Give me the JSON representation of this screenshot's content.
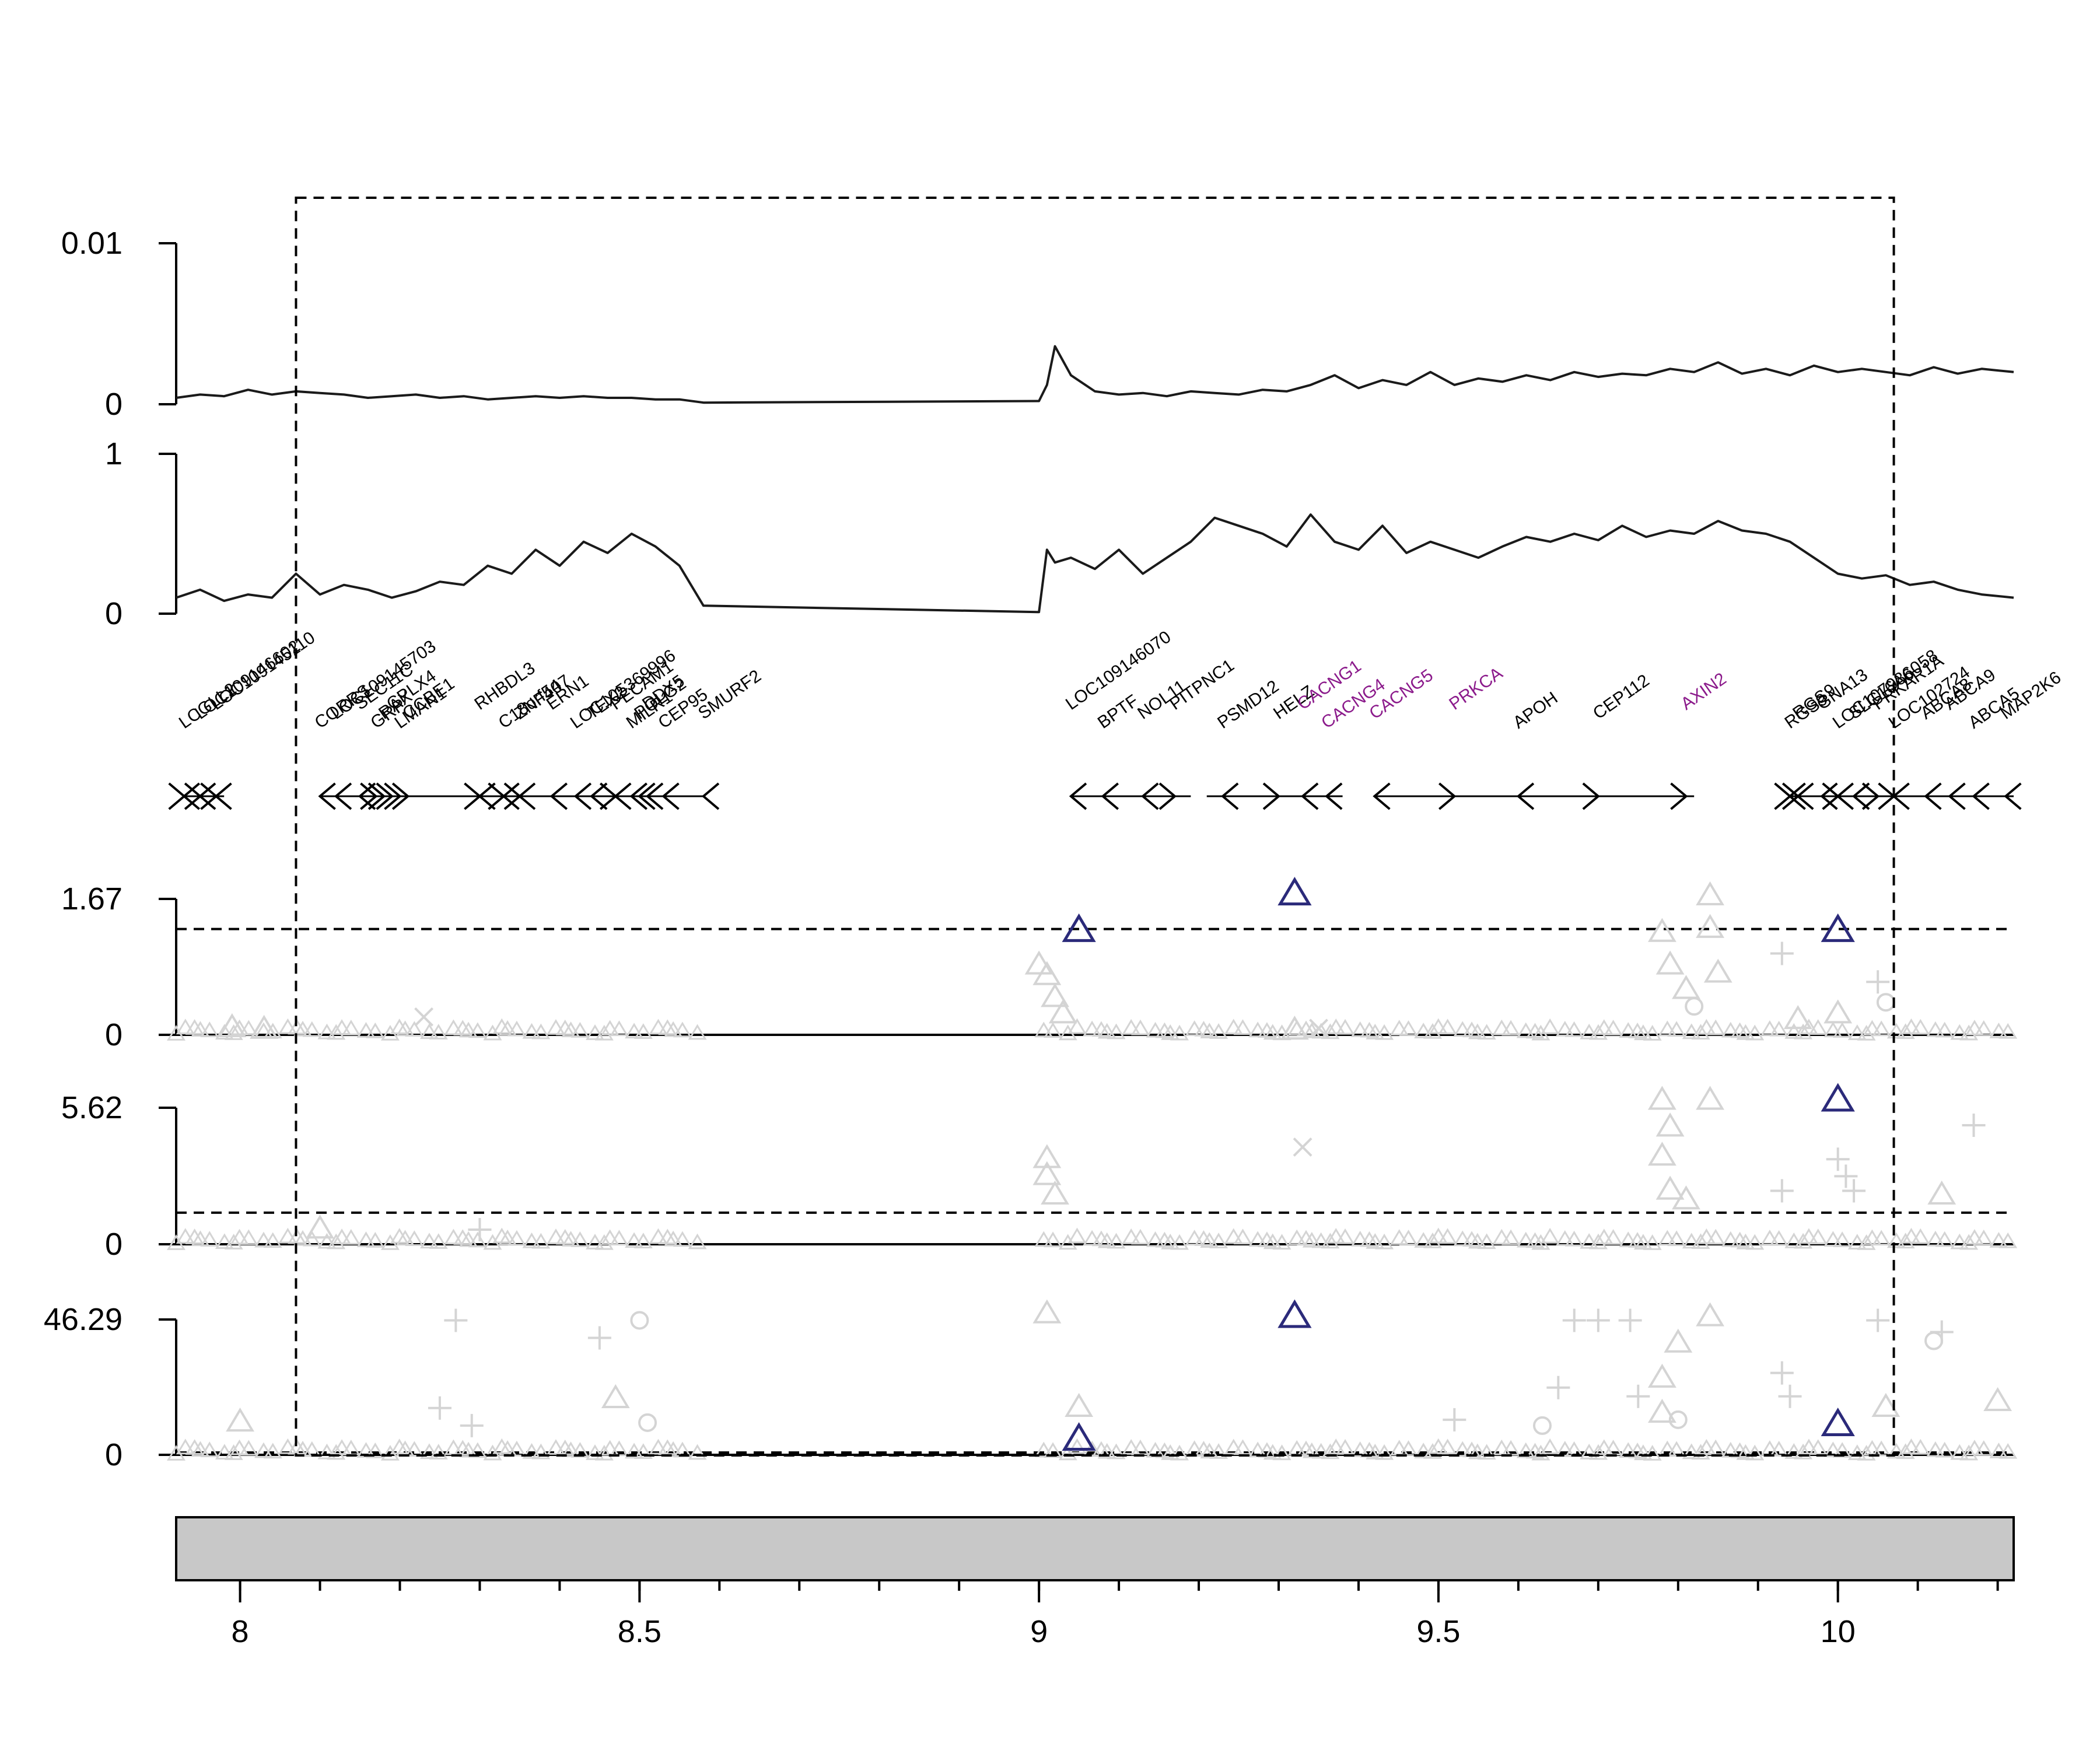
{
  "chart_data": {
    "type": "line",
    "title": "",
    "x_axis": {
      "range": [
        7.92,
        10.22
      ],
      "ticks": [
        8,
        8.5,
        9,
        9.5,
        10
      ],
      "tick_labels": [
        "8",
        "8.5",
        "9",
        "9.5",
        "10"
      ],
      "minor_step": 0.1,
      "label": ""
    },
    "highlight_region": [
      8.07,
      10.07
    ],
    "tracks": [
      {
        "kind": "line",
        "ylim": [
          0,
          0.01
        ],
        "tick_labels": [
          "0",
          "0.01"
        ],
        "x": [
          7.92,
          7.95,
          7.98,
          8.01,
          8.04,
          8.07,
          8.1,
          8.13,
          8.16,
          8.19,
          8.22,
          8.25,
          8.28,
          8.31,
          8.34,
          8.37,
          8.4,
          8.43,
          8.46,
          8.49,
          8.52,
          8.55,
          8.58,
          9.0,
          9.01,
          9.02,
          9.04,
          9.07,
          9.1,
          9.13,
          9.16,
          9.19,
          9.22,
          9.25,
          9.28,
          9.31,
          9.34,
          9.37,
          9.4,
          9.43,
          9.46,
          9.49,
          9.52,
          9.55,
          9.58,
          9.61,
          9.64,
          9.67,
          9.7,
          9.73,
          9.76,
          9.79,
          9.82,
          9.85,
          9.88,
          9.91,
          9.94,
          9.97,
          10.0,
          10.03,
          10.06,
          10.09,
          10.12,
          10.15,
          10.18,
          10.22
        ],
        "y": [
          0.0004,
          0.0006,
          0.0005,
          0.0009,
          0.0006,
          0.0008,
          0.0007,
          0.0006,
          0.0004,
          0.0005,
          0.0006,
          0.0004,
          0.0005,
          0.0003,
          0.0004,
          0.0005,
          0.0004,
          0.0005,
          0.0004,
          0.0004,
          0.0003,
          0.0003,
          0.0001,
          0.0002,
          0.0012,
          0.0036,
          0.0018,
          0.0008,
          0.0006,
          0.0007,
          0.0005,
          0.0008,
          0.0007,
          0.0006,
          0.0009,
          0.0008,
          0.0012,
          0.0018,
          0.001,
          0.0015,
          0.0012,
          0.002,
          0.0012,
          0.0016,
          0.0014,
          0.0018,
          0.0015,
          0.002,
          0.0017,
          0.0019,
          0.0018,
          0.0022,
          0.002,
          0.0026,
          0.0019,
          0.0022,
          0.0018,
          0.0024,
          0.002,
          0.0022,
          0.002,
          0.0018,
          0.0023,
          0.0019,
          0.0022,
          0.002
        ]
      },
      {
        "kind": "line",
        "ylim": [
          0,
          1
        ],
        "tick_labels": [
          "0",
          "1"
        ],
        "x": [
          7.92,
          7.95,
          7.98,
          8.01,
          8.04,
          8.07,
          8.1,
          8.13,
          8.16,
          8.19,
          8.22,
          8.25,
          8.28,
          8.31,
          8.34,
          8.37,
          8.4,
          8.43,
          8.46,
          8.49,
          8.52,
          8.55,
          8.58,
          9.0,
          9.01,
          9.02,
          9.04,
          9.07,
          9.1,
          9.13,
          9.16,
          9.19,
          9.22,
          9.25,
          9.28,
          9.31,
          9.34,
          9.37,
          9.4,
          9.43,
          9.46,
          9.49,
          9.52,
          9.55,
          9.58,
          9.61,
          9.64,
          9.67,
          9.7,
          9.73,
          9.76,
          9.79,
          9.82,
          9.85,
          9.88,
          9.91,
          9.94,
          9.97,
          10.0,
          10.03,
          10.06,
          10.09,
          10.12,
          10.15,
          10.18,
          10.22
        ],
        "y": [
          0.1,
          0.15,
          0.08,
          0.12,
          0.1,
          0.25,
          0.12,
          0.18,
          0.15,
          0.1,
          0.14,
          0.2,
          0.18,
          0.3,
          0.25,
          0.4,
          0.3,
          0.45,
          0.38,
          0.5,
          0.42,
          0.3,
          0.05,
          0.01,
          0.4,
          0.32,
          0.35,
          0.28,
          0.4,
          0.25,
          0.35,
          0.45,
          0.6,
          0.55,
          0.5,
          0.42,
          0.62,
          0.45,
          0.4,
          0.55,
          0.38,
          0.45,
          0.4,
          0.35,
          0.42,
          0.48,
          0.45,
          0.5,
          0.46,
          0.55,
          0.48,
          0.52,
          0.5,
          0.58,
          0.52,
          0.5,
          0.45,
          0.35,
          0.25,
          0.22,
          0.24,
          0.18,
          0.2,
          0.15,
          0.12,
          0.1
        ]
      },
      {
        "kind": "scatter",
        "ylim": [
          0,
          1.67
        ],
        "tick_labels": [
          "0",
          "1.67"
        ],
        "threshold": 1.3,
        "highlighted": [
          {
            "x": 9.05,
            "y": 1.27
          },
          {
            "x": 9.32,
            "y": 1.72
          },
          {
            "x": 10.0,
            "y": 1.27
          }
        ],
        "background": [
          {
            "x": 7.99,
            "y": 0.08,
            "m": "t"
          },
          {
            "x": 8.03,
            "y": 0.06,
            "m": "t"
          },
          {
            "x": 8.23,
            "y": 0.22,
            "m": "x"
          },
          {
            "x": 9.0,
            "y": 0.85,
            "m": "t"
          },
          {
            "x": 9.01,
            "y": 0.72,
            "m": "t"
          },
          {
            "x": 9.02,
            "y": 0.45,
            "m": "t"
          },
          {
            "x": 9.03,
            "y": 0.25,
            "m": "t"
          },
          {
            "x": 9.32,
            "y": 0.05,
            "m": "t"
          },
          {
            "x": 9.35,
            "y": 0.08,
            "m": "x"
          },
          {
            "x": 9.78,
            "y": 1.25,
            "m": "t"
          },
          {
            "x": 9.79,
            "y": 0.85,
            "m": "t"
          },
          {
            "x": 9.81,
            "y": 0.55,
            "m": "t"
          },
          {
            "x": 9.82,
            "y": 0.35,
            "m": "o"
          },
          {
            "x": 9.84,
            "y": 1.7,
            "m": "t"
          },
          {
            "x": 9.84,
            "y": 1.3,
            "m": "t"
          },
          {
            "x": 9.85,
            "y": 0.75,
            "m": "t"
          },
          {
            "x": 9.93,
            "y": 1.0,
            "m": "p"
          },
          {
            "x": 10.05,
            "y": 0.65,
            "m": "p"
          },
          {
            "x": 10.06,
            "y": 0.4,
            "m": "o"
          },
          {
            "x": 10.0,
            "y": 0.25,
            "m": "t"
          },
          {
            "x": 9.95,
            "y": 0.18,
            "m": "t"
          }
        ]
      },
      {
        "kind": "scatter",
        "ylim": [
          0,
          5.62
        ],
        "tick_labels": [
          "0",
          "5.62"
        ],
        "threshold": 1.3,
        "highlighted": [
          {
            "x": 10.0,
            "y": 5.9
          }
        ],
        "background": [
          {
            "x": 9.33,
            "y": 4.0,
            "m": "x"
          },
          {
            "x": 9.01,
            "y": 3.5,
            "m": "t"
          },
          {
            "x": 9.01,
            "y": 2.8,
            "m": "t"
          },
          {
            "x": 9.02,
            "y": 2.0,
            "m": "t"
          },
          {
            "x": 9.78,
            "y": 5.9,
            "m": "t"
          },
          {
            "x": 9.79,
            "y": 4.8,
            "m": "t"
          },
          {
            "x": 9.84,
            "y": 5.9,
            "m": "t"
          },
          {
            "x": 9.78,
            "y": 3.6,
            "m": "t"
          },
          {
            "x": 9.79,
            "y": 2.2,
            "m": "t"
          },
          {
            "x": 9.81,
            "y": 1.8,
            "m": "t"
          },
          {
            "x": 10.0,
            "y": 3.5,
            "m": "p"
          },
          {
            "x": 10.01,
            "y": 2.8,
            "m": "p"
          },
          {
            "x": 10.02,
            "y": 2.2,
            "m": "p"
          },
          {
            "x": 10.13,
            "y": 2.0,
            "m": "t"
          },
          {
            "x": 10.17,
            "y": 4.9,
            "m": "p"
          },
          {
            "x": 9.93,
            "y": 2.2,
            "m": "p"
          },
          {
            "x": 8.1,
            "y": 0.6,
            "m": "t"
          },
          {
            "x": 8.3,
            "y": 0.6,
            "m": "p"
          }
        ]
      },
      {
        "kind": "scatter",
        "ylim": [
          0,
          46.29
        ],
        "tick_labels": [
          "0",
          "46.29"
        ],
        "threshold": 0.8,
        "highlighted": [
          {
            "x": 9.05,
            "y": 5.0
          },
          {
            "x": 9.32,
            "y": 47.0
          },
          {
            "x": 10.0,
            "y": 10.0
          }
        ],
        "background": [
          {
            "x": 8.27,
            "y": 46.0,
            "m": "p"
          },
          {
            "x": 8.5,
            "y": 46.0,
            "m": "o"
          },
          {
            "x": 8.45,
            "y": 40.0,
            "m": "p"
          },
          {
            "x": 8.25,
            "y": 16.0,
            "m": "p"
          },
          {
            "x": 8.29,
            "y": 10.0,
            "m": "p"
          },
          {
            "x": 8.47,
            "y": 19.0,
            "m": "t"
          },
          {
            "x": 8.51,
            "y": 11.0,
            "m": "o"
          },
          {
            "x": 8.0,
            "y": 11.0,
            "m": "t"
          },
          {
            "x": 9.01,
            "y": 48.0,
            "m": "t"
          },
          {
            "x": 9.05,
            "y": 16.0,
            "m": "t"
          },
          {
            "x": 9.67,
            "y": 46.0,
            "m": "p"
          },
          {
            "x": 9.7,
            "y": 46.0,
            "m": "p"
          },
          {
            "x": 9.74,
            "y": 46.0,
            "m": "p"
          },
          {
            "x": 9.84,
            "y": 47.0,
            "m": "t"
          },
          {
            "x": 9.8,
            "y": 38.0,
            "m": "t"
          },
          {
            "x": 9.65,
            "y": 23.0,
            "m": "p"
          },
          {
            "x": 9.75,
            "y": 20.0,
            "m": "p"
          },
          {
            "x": 9.78,
            "y": 26.0,
            "m": "t"
          },
          {
            "x": 9.78,
            "y": 14.0,
            "m": "t"
          },
          {
            "x": 9.8,
            "y": 12.0,
            "m": "o"
          },
          {
            "x": 9.93,
            "y": 28.0,
            "m": "p"
          },
          {
            "x": 9.94,
            "y": 20.0,
            "m": "p"
          },
          {
            "x": 10.05,
            "y": 46.0,
            "m": "p"
          },
          {
            "x": 10.12,
            "y": 39.0,
            "m": "o"
          },
          {
            "x": 10.13,
            "y": 42.0,
            "m": "p"
          },
          {
            "x": 10.06,
            "y": 16.0,
            "m": "t"
          },
          {
            "x": 10.2,
            "y": 18.0,
            "m": "t"
          },
          {
            "x": 9.52,
            "y": 12.0,
            "m": "p"
          },
          {
            "x": 9.63,
            "y": 10.0,
            "m": "o"
          }
        ]
      }
    ],
    "genes": [
      {
        "name": "LCGLL2",
        "x": 7.93,
        "dir": "both",
        "color": "#000000"
      },
      {
        "name": "LOC109146602",
        "x": 7.95,
        "dir": "both",
        "color": "#000000"
      },
      {
        "name": "LOC109145110",
        "x": 7.97,
        "dir": "both",
        "color": "#000000"
      },
      {
        "name": "CORRS",
        "x": 8.1,
        "dir": "left",
        "color": "#000000"
      },
      {
        "name": "LOC109145703",
        "x": 8.12,
        "dir": "left",
        "color": "#000000"
      },
      {
        "name": "SEC11C",
        "x": 8.15,
        "dir": "left",
        "color": "#000000"
      },
      {
        "name": "GRP",
        "x": 8.17,
        "dir": "right",
        "color": "#000000"
      },
      {
        "name": "RAX",
        "x": 8.18,
        "dir": "right",
        "color": "#000000"
      },
      {
        "name": "CPLX4",
        "x": 8.19,
        "dir": "right",
        "color": "#000000"
      },
      {
        "name": "LMAN1",
        "x": 8.2,
        "dir": "right",
        "color": "#000000"
      },
      {
        "name": "CCBE1",
        "x": 8.21,
        "dir": "right",
        "color": "#000000"
      },
      {
        "name": "RHBDL3",
        "x": 8.3,
        "dir": "both",
        "color": "#000000"
      },
      {
        "name": "C18orf54",
        "x": 8.33,
        "dir": "both",
        "color": "#000000"
      },
      {
        "name": "ZNF407",
        "x": 8.35,
        "dir": "both",
        "color": "#000000"
      },
      {
        "name": "ERN1",
        "x": 8.39,
        "dir": "left",
        "color": "#000000"
      },
      {
        "name": "LOC105369996",
        "x": 8.42,
        "dir": "left",
        "color": "#000000"
      },
      {
        "name": "TEX2",
        "x": 8.44,
        "dir": "left",
        "color": "#000000"
      },
      {
        "name": "PECAM1",
        "x": 8.47,
        "dir": "both",
        "color": "#000000"
      },
      {
        "name": "MILR1",
        "x": 8.49,
        "dir": "left",
        "color": "#000000"
      },
      {
        "name": "POLG2",
        "x": 8.5,
        "dir": "left",
        "color": "#000000"
      },
      {
        "name": "DDX5",
        "x": 8.51,
        "dir": "left",
        "color": "#000000"
      },
      {
        "name": "CEP95",
        "x": 8.53,
        "dir": "left",
        "color": "#000000"
      },
      {
        "name": "SMURF2",
        "x": 8.58,
        "dir": "left",
        "color": "#000000"
      },
      {
        "name": "LOC109146070",
        "x": 9.04,
        "dir": "left",
        "color": "#000000"
      },
      {
        "name": "BPTF",
        "x": 9.08,
        "dir": "left",
        "color": "#000000"
      },
      {
        "name": "NOL11",
        "x": 9.13,
        "dir": "left",
        "color": "#000000"
      },
      {
        "name": "PITPNC1",
        "x": 9.17,
        "dir": "right",
        "color": "#000000"
      },
      {
        "name": "PSMD12",
        "x": 9.23,
        "dir": "left",
        "color": "#000000"
      },
      {
        "name": "HELZ",
        "x": 9.3,
        "dir": "right",
        "color": "#000000"
      },
      {
        "name": "CACNG1",
        "x": 9.33,
        "dir": "left",
        "color": "#8B1A8B"
      },
      {
        "name": "CACNG4",
        "x": 9.36,
        "dir": "left",
        "color": "#8B1A8B"
      },
      {
        "name": "CACNG5",
        "x": 9.42,
        "dir": "left",
        "color": "#8B1A8B"
      },
      {
        "name": "PRKCA",
        "x": 9.52,
        "dir": "right",
        "color": "#8B1A8B"
      },
      {
        "name": "APOH",
        "x": 9.6,
        "dir": "left",
        "color": "#000000"
      },
      {
        "name": "CEP112",
        "x": 9.7,
        "dir": "right",
        "color": "#000000"
      },
      {
        "name": "AXIN2",
        "x": 9.81,
        "dir": "right",
        "color": "#8B1A8B"
      },
      {
        "name": "RGS9",
        "x": 9.94,
        "dir": "both",
        "color": "#000000"
      },
      {
        "name": "RGS9",
        "x": 9.95,
        "dir": "both",
        "color": "#000000"
      },
      {
        "name": "GNA13",
        "x": 9.98,
        "dir": "left",
        "color": "#000000"
      },
      {
        "name": "LOC107986058",
        "x": 10.0,
        "dir": "both",
        "color": "#000000"
      },
      {
        "name": "SLC16A6",
        "x": 10.02,
        "dir": "left",
        "color": "#000000"
      },
      {
        "name": "PRKAR1A",
        "x": 10.05,
        "dir": "right",
        "color": "#000000"
      },
      {
        "name": "LOC102724",
        "x": 10.07,
        "dir": "both",
        "color": "#000000"
      },
      {
        "name": "ABCA8",
        "x": 10.11,
        "dir": "left",
        "color": "#000000"
      },
      {
        "name": "ABCA9",
        "x": 10.14,
        "dir": "left",
        "color": "#000000"
      },
      {
        "name": "ABCA5",
        "x": 10.17,
        "dir": "left",
        "color": "#000000"
      },
      {
        "name": "MAP2K6",
        "x": 10.21,
        "dir": "left",
        "color": "#000000"
      }
    ],
    "colors": {
      "line": "#1a1a1a",
      "highlight_marker": "#2b2a7a",
      "background_marker": "#d4d4d4",
      "gene_highlight": "#8B1A8B",
      "chrom_bar": "#c8c8c8"
    }
  }
}
